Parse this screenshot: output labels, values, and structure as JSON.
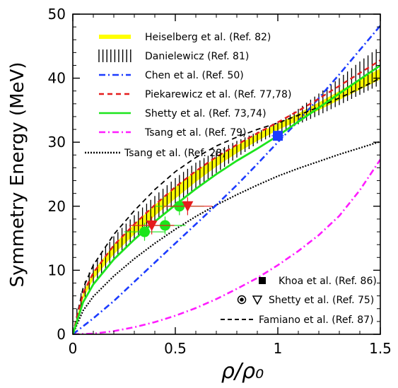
{
  "chart_data": {
    "type": "line",
    "title": "",
    "xlabel": "ρ/ρ₀",
    "ylabel": "Symmetry Energy (MeV)",
    "xlim": [
      0,
      1.5
    ],
    "ylim": [
      0,
      50
    ],
    "x_ticks": [
      0,
      0.5,
      1,
      1.5
    ],
    "x_tick_labels": [
      "0",
      "0.5",
      "1",
      "1.5"
    ],
    "y_ticks": [
      0,
      10,
      20,
      30,
      40,
      50
    ],
    "y_tick_labels": [
      "0",
      "10",
      "20",
      "30",
      "40",
      "50"
    ],
    "grid": false,
    "legend_position": "top-left",
    "series": [
      {
        "name": "Heiselberg et al. (Ref. 82)",
        "style": "band",
        "color": "#ffff00",
        "x": [
          0,
          0.05,
          0.1,
          0.2,
          0.3,
          0.4,
          0.5,
          0.6,
          0.7,
          0.8,
          0.9,
          1.0,
          1.1,
          1.2,
          1.3,
          1.4,
          1.5
        ],
        "upper": [
          0,
          6.5,
          9.8,
          14.0,
          17.2,
          20.2,
          23.0,
          25.5,
          27.6,
          29.5,
          31.3,
          32.9,
          34.5,
          36.2,
          38.0,
          39.8,
          41.5
        ],
        "lower": [
          0,
          5.5,
          8.6,
          12.5,
          15.6,
          18.5,
          21.2,
          23.8,
          26.2,
          28.3,
          30.2,
          31.9,
          33.4,
          35.0,
          36.6,
          38.2,
          39.8
        ]
      },
      {
        "name": "Danielewicz (Ref. 81)",
        "style": "hatched-band",
        "color": "#000000",
        "x": [
          0.02,
          0.05,
          0.1,
          0.2,
          0.3,
          0.4,
          0.5,
          0.6,
          0.7,
          0.8,
          0.9,
          1.0,
          1.1,
          1.2,
          1.3,
          1.4,
          1.5
        ],
        "upper": [
          4.0,
          7.6,
          11.0,
          15.3,
          18.6,
          21.6,
          24.4,
          26.8,
          28.6,
          30.2,
          31.6,
          33.0,
          35.2,
          37.6,
          40.0,
          42.6,
          45.0
        ],
        "lower": [
          2.0,
          4.8,
          7.8,
          11.6,
          14.8,
          17.7,
          20.3,
          22.8,
          25.2,
          27.6,
          29.8,
          31.4,
          32.8,
          34.2,
          35.8,
          37.4,
          39.0
        ]
      },
      {
        "name": "Chen et al. (Ref. 50)",
        "style": "dash-dot",
        "color": "#1c3cff",
        "x": [
          0,
          0.1,
          0.2,
          0.3,
          0.4,
          0.5,
          0.6,
          0.7,
          0.8,
          0.9,
          1.0,
          1.1,
          1.2,
          1.3,
          1.4,
          1.5
        ],
        "y": [
          0,
          2.5,
          5.2,
          8.2,
          11.2,
          14.2,
          17.2,
          20.2,
          23.3,
          26.6,
          30.0,
          33.3,
          36.9,
          40.6,
          44.4,
          48.2
        ]
      },
      {
        "name": "Piekarewicz et al. (Ref. 77,78)",
        "style": "dashed",
        "color": "#e51c1c",
        "x": [
          0,
          0.05,
          0.1,
          0.2,
          0.3,
          0.4,
          0.5,
          0.6,
          0.7,
          0.8,
          0.9,
          1.0,
          1.1,
          1.2,
          1.3,
          1.4,
          1.5
        ],
        "y": [
          0,
          6.4,
          9.6,
          13.9,
          17.2,
          20.2,
          23.0,
          25.5,
          27.7,
          29.6,
          31.4,
          33.1,
          34.9,
          36.8,
          38.8,
          40.8,
          42.8
        ]
      },
      {
        "name": "Shetty et al. (Ref. 73,74)",
        "style": "solid",
        "color": "#1ce51c",
        "x": [
          0,
          0.05,
          0.1,
          0.2,
          0.3,
          0.4,
          0.5,
          0.6,
          0.7,
          0.8,
          0.9,
          1.0,
          1.1,
          1.2,
          1.3,
          1.4,
          1.5
        ],
        "y": [
          0,
          5.0,
          7.8,
          11.7,
          14.8,
          17.6,
          20.2,
          22.7,
          25.0,
          27.1,
          29.0,
          31.0,
          33.2,
          35.4,
          37.6,
          39.8,
          42.0
        ]
      },
      {
        "name": "Tsang et al. (Ref. 79)",
        "style": "dash-dot",
        "color": "#ff1cff",
        "x": [
          0,
          0.1,
          0.2,
          0.3,
          0.4,
          0.5,
          0.6,
          0.7,
          0.8,
          0.9,
          1.0,
          1.1,
          1.2,
          1.3,
          1.4,
          1.5
        ],
        "y": [
          0,
          0.1,
          0.5,
          1.1,
          1.9,
          2.9,
          4.1,
          5.5,
          7.1,
          8.8,
          10.8,
          13.0,
          15.5,
          18.5,
          22.5,
          27.3
        ]
      },
      {
        "name": "Tsang et al. (Ref. 28)",
        "style": "dotted",
        "color": "#000000",
        "x": [
          0,
          0.05,
          0.1,
          0.2,
          0.3,
          0.4,
          0.5,
          0.6,
          0.7,
          0.8,
          0.9,
          1.0,
          1.1,
          1.2,
          1.3,
          1.4,
          1.5
        ],
        "y": [
          0,
          3.7,
          5.9,
          9.1,
          11.8,
          14.2,
          16.4,
          18.4,
          20.2,
          21.8,
          23.3,
          24.7,
          25.9,
          27.0,
          28.1,
          29.1,
          30.1
        ]
      },
      {
        "name": "Famiano et al. (Ref. 87)",
        "style": "dashed",
        "color": "#000000",
        "x": [
          0,
          0.05,
          0.1,
          0.2,
          0.3,
          0.4,
          0.5,
          0.6,
          0.7,
          0.8,
          0.9,
          1.0,
          1.1,
          1.2,
          1.3,
          1.4,
          1.5
        ],
        "y": [
          0,
          7.2,
          10.8,
          15.6,
          19.3,
          22.6,
          25.4,
          27.6,
          29.4,
          30.8,
          32.0,
          33.0,
          34.2,
          35.5,
          36.9,
          38.4,
          40.0
        ]
      },
      {
        "name": "Khoa et al. (Ref. 86)",
        "style": "marker",
        "marker": "square",
        "color": "#1c3cff",
        "points": [
          {
            "x": 1.0,
            "y": 31.0,
            "xerr": 0.03,
            "yerr": 0.8
          }
        ]
      },
      {
        "name": "Shetty et al. (Ref. 75)",
        "style": "marker",
        "marker": "circle-and-triangle",
        "color": "#1ce51c",
        "points": [
          {
            "x": 0.35,
            "y": 16.0,
            "xerr": 0.1,
            "yerr": 1.4,
            "marker": "circle",
            "color": "#1ce51c"
          },
          {
            "x": 0.45,
            "y": 17.0,
            "xerr": 0.1,
            "yerr": 1.4,
            "marker": "circle",
            "color": "#1ce51c"
          },
          {
            "x": 0.52,
            "y": 20.0,
            "xerr": 0.12,
            "yerr": 1.4,
            "marker": "circle",
            "color": "#1ce51c"
          },
          {
            "x": 0.385,
            "y": 17.0,
            "xerr": 0.11,
            "yerr": 1.4,
            "marker": "triangle",
            "color": "#e51c1c"
          },
          {
            "x": 0.56,
            "y": 20.0,
            "xerr": 0.12,
            "yerr": 1.4,
            "marker": "triangle",
            "color": "#e51c1c"
          }
        ]
      }
    ],
    "legend_main": [
      {
        "label": "Heiselberg et al. (Ref. 82)",
        "swatch": "band",
        "color": "#ffff00"
      },
      {
        "label": "Danielewicz (Ref. 81)",
        "swatch": "hatched",
        "color": "#000000"
      },
      {
        "label": "Chen et al. (Ref. 50)",
        "swatch": "dash-dot",
        "color": "#1c3cff"
      },
      {
        "label": "Piekarewicz et al. (Ref. 77,78)",
        "swatch": "dashed",
        "color": "#e51c1c"
      },
      {
        "label": "Shetty et al. (Ref. 73,74)",
        "swatch": "solid",
        "color": "#1ce51c"
      },
      {
        "label": "Tsang et al. (Ref. 79)",
        "swatch": "dash-dot",
        "color": "#ff1cff"
      },
      {
        "label": "Tsang et al. (Ref. 28)",
        "swatch": "dotted",
        "color": "#000000"
      }
    ],
    "legend_lower": [
      {
        "label": "Khoa et al. (Ref. 86)",
        "swatch": "square"
      },
      {
        "label": "Shetty et al. (Ref. 75)",
        "swatch": "circle-triangle"
      },
      {
        "label": "Famiano et al. (Ref. 87)",
        "swatch": "dashed"
      }
    ]
  }
}
